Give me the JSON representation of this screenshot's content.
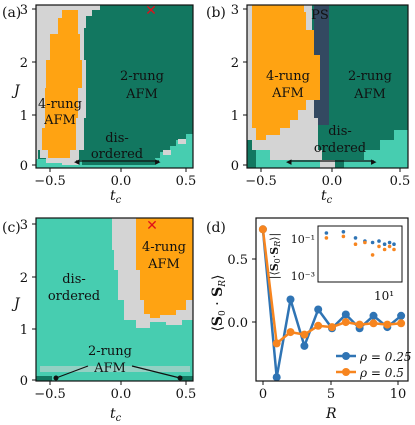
{
  "colors": {
    "afm2": "#127760",
    "afm4": "#ffa312",
    "dis": "#47cdb0",
    "unk": "#d4d4d4",
    "ps": "#334961",
    "cross": "#e0101a",
    "s025": "#2f74b4",
    "s05": "#f7851f"
  },
  "panels": {
    "a": {
      "letter": "(a)",
      "x_label": "t_c",
      "y_label": "J",
      "xticks": [
        "−0.5",
        "0.0",
        "0.5"
      ],
      "yticks": [
        "0",
        "1",
        "2",
        "3"
      ],
      "regions": {
        "afm2": "2-rung AFM",
        "afm4": "4-rung AFM",
        "dis": "dis-ordered"
      }
    },
    "b": {
      "letter": "(b)",
      "x_label": "t_c",
      "xticks": [
        "−0.5",
        "0.0",
        "0.5"
      ],
      "yticks": [
        "0",
        "1",
        "2",
        "3"
      ],
      "regions": {
        "afm2": "2-rung AFM",
        "afm4": "4-rung AFM",
        "dis": "dis-ordered",
        "ps": "PS"
      }
    },
    "c": {
      "letter": "(c)",
      "x_label": "t_c",
      "y_label": "J",
      "xticks": [
        "−0.5",
        "0.0",
        "0.5"
      ],
      "yticks": [
        "0",
        "1",
        "2",
        "3"
      ],
      "regions": {
        "afm2": "2-rung AFM",
        "afm4": "4-rung AFM",
        "dis": "dis-ordered"
      }
    },
    "d": {
      "letter": "(d)",
      "x_label": "R",
      "y_label": "⟨S0 · SR⟩",
      "xticks": [
        "0",
        "5",
        "10"
      ],
      "yticks": [
        "0.0",
        "0.5"
      ],
      "inset_y_label": "|⟨S0 · SR⟩|",
      "inset_xtick": "10¹",
      "inset_yticks": [
        "10⁻¹",
        "10⁻³"
      ]
    }
  },
  "chart_data": [
    {
      "type": "heatmap",
      "panel": "a",
      "x_range": [
        -0.55,
        0.55
      ],
      "y_range": [
        0,
        3.1
      ],
      "phases": [
        "2-rung AFM",
        "4-rung AFM",
        "dis-ordered"
      ],
      "marker": {
        "tc": 0.25,
        "J": 3.0
      }
    },
    {
      "type": "heatmap",
      "panel": "b",
      "x_range": [
        -0.55,
        0.55
      ],
      "y_range": [
        0,
        3.1
      ],
      "phases": [
        "2-rung AFM",
        "4-rung AFM",
        "dis-ordered",
        "PS"
      ]
    },
    {
      "type": "heatmap",
      "panel": "c",
      "x_range": [
        -0.55,
        0.55
      ],
      "y_range": [
        0,
        3.1
      ],
      "phases": [
        "2-rung AFM",
        "4-rung AFM",
        "dis-ordered"
      ],
      "marker": {
        "tc": 0.25,
        "J": 3.0
      }
    },
    {
      "type": "line",
      "panel": "d",
      "xlabel": "R",
      "ylabel": "⟨S0 · SR⟩",
      "xlim": [
        -0.5,
        10.5
      ],
      "ylim": [
        -0.48,
        0.82
      ],
      "x": [
        0,
        1,
        2,
        3,
        4,
        5,
        6,
        7,
        8,
        9,
        10
      ],
      "series": [
        {
          "name": "ρ = 0.25",
          "values": [
            0.73,
            -0.45,
            0.17,
            -0.2,
            0.09,
            -0.06,
            0.05,
            -0.06,
            0.04,
            -0.05,
            0.04
          ]
        },
        {
          "name": "ρ = 0.5",
          "values": [
            0.73,
            -0.18,
            -0.09,
            -0.11,
            -0.04,
            -0.05,
            -0.01,
            -0.03,
            -0.02,
            -0.03,
            -0.02
          ]
        }
      ]
    }
  ]
}
